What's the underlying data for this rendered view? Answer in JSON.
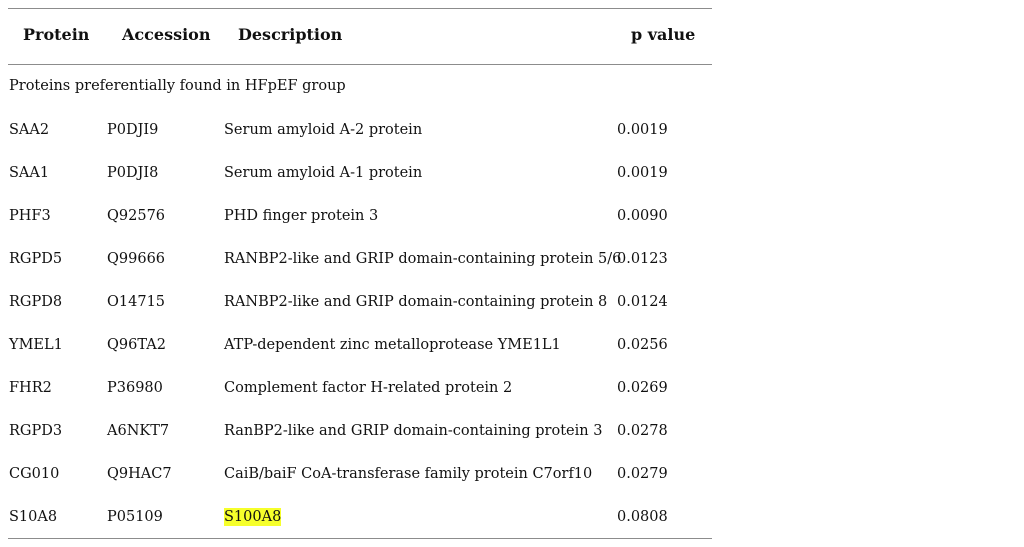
{
  "header": {
    "protein": "Protein",
    "accession": "Accession",
    "description": "Description",
    "p_value": "p value"
  },
  "section": {
    "title": "Proteins preferentially found in HFpEF group"
  },
  "rows": [
    {
      "protein": "SAA2",
      "accession": "P0DJI9",
      "description": "Serum amyloid A-2 protein",
      "p_value": "0.0019"
    },
    {
      "protein": "SAA1",
      "accession": "P0DJI8",
      "description": "Serum amyloid A-1 protein",
      "p_value": "0.0019"
    },
    {
      "protein": "PHF3",
      "accession": "Q92576",
      "description": "PHD finger protein 3",
      "p_value": "0.0090"
    },
    {
      "protein": "RGPD5",
      "accession": "Q99666",
      "description": "RANBP2-like and GRIP domain-containing protein 5/6",
      "p_value": "0.0123"
    },
    {
      "protein": "RGPD8",
      "accession": "O14715",
      "description": "RANBP2-like and GRIP domain-containing protein 8",
      "p_value": "0.0124"
    },
    {
      "protein": "YMEL1",
      "accession": "Q96TA2",
      "description": "ATP-dependent zinc metalloprotease YME1L1",
      "p_value": "0.0256"
    },
    {
      "protein": "FHR2",
      "accession": "P36980",
      "description": "Complement factor H-related protein 2",
      "p_value": "0.0269"
    },
    {
      "protein": "RGPD3",
      "accession": "A6NKT7",
      "description": "RanBP2-like and GRIP domain-containing protein 3",
      "p_value": "0.0278"
    },
    {
      "protein": "CG010",
      "accession": "Q9HAC7",
      "description": "CaiB/baiF CoA-transferase family protein C7orf10",
      "p_value": "0.0279"
    },
    {
      "protein": "S10A8",
      "accession": "P05109",
      "description": "S100A8",
      "p_value": "0.0808"
    }
  ],
  "highlight_color": "#f6ff2b"
}
